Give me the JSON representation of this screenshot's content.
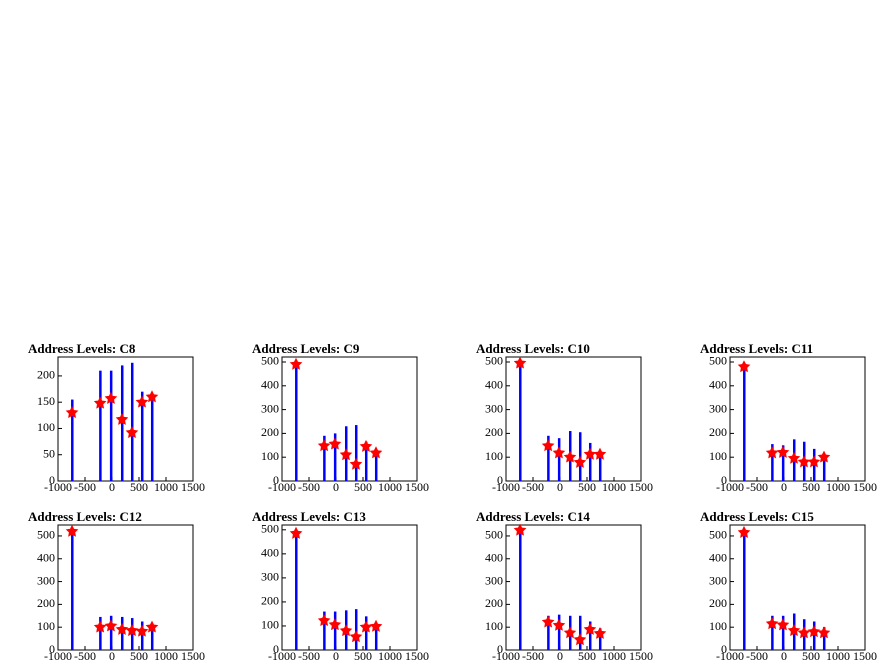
{
  "chart_data": [
    {
      "type": "histogram",
      "title": "Address Levels: C8",
      "xlim": [
        -1000,
        1500
      ],
      "xticks": [
        -1000,
        -500,
        0,
        500,
        1000,
        1500
      ],
      "ylim": [
        0,
        236
      ],
      "yticks": [
        0,
        50,
        100,
        150,
        200
      ],
      "x": [
        -740,
        -220,
        -20,
        185,
        370,
        555,
        740
      ],
      "hist_values": [
        155,
        210,
        210,
        220,
        225,
        170,
        165
      ],
      "values": [
        130,
        148,
        157,
        117,
        92,
        150,
        160
      ],
      "hist_color": "#0000ff",
      "marker_color": "#ff0000"
    },
    {
      "type": "histogram",
      "title": "Address Levels: C9",
      "xlim": [
        -1000,
        1500
      ],
      "xticks": [
        -1000,
        -500,
        0,
        500,
        1000,
        1500
      ],
      "ylim": [
        0,
        521
      ],
      "yticks": [
        0,
        100,
        200,
        300,
        400,
        500
      ],
      "x": [
        -740,
        -220,
        -20,
        185,
        370,
        555,
        740
      ],
      "hist_values": [
        500,
        190,
        200,
        230,
        235,
        165,
        130
      ],
      "values": [
        490,
        148,
        155,
        110,
        70,
        145,
        118
      ],
      "hist_color": "#0000ff",
      "marker_color": "#ff0000"
    },
    {
      "type": "histogram",
      "title": "Address Levels: C10",
      "xlim": [
        -1000,
        1500
      ],
      "xticks": [
        -1000,
        -500,
        0,
        500,
        1000,
        1500
      ],
      "ylim": [
        0,
        521
      ],
      "yticks": [
        0,
        100,
        200,
        300,
        400,
        500
      ],
      "x": [
        -740,
        -220,
        -20,
        185,
        370,
        555,
        740
      ],
      "hist_values": [
        505,
        190,
        180,
        210,
        205,
        160,
        120
      ],
      "values": [
        495,
        148,
        118,
        100,
        78,
        112,
        112
      ],
      "hist_color": "#0000ff",
      "marker_color": "#ff0000"
    },
    {
      "type": "histogram",
      "title": "Address Levels: C11",
      "xlim": [
        -1000,
        1500
      ],
      "xticks": [
        -1000,
        -500,
        0,
        500,
        1000,
        1500
      ],
      "ylim": [
        0,
        521
      ],
      "yticks": [
        0,
        100,
        200,
        300,
        400,
        500
      ],
      "x": [
        -740,
        -220,
        -20,
        185,
        370,
        555,
        740
      ],
      "hist_values": [
        490,
        155,
        150,
        175,
        165,
        135,
        110
      ],
      "values": [
        480,
        118,
        120,
        95,
        80,
        80,
        100
      ],
      "hist_color": "#0000ff",
      "marker_color": "#ff0000"
    },
    {
      "type": "histogram",
      "title": "Address Levels: C12",
      "xlim": [
        -1000,
        1500
      ],
      "xticks": [
        -1000,
        -500,
        0,
        500,
        1000,
        1500
      ],
      "ylim": [
        0,
        548
      ],
      "yticks": [
        0,
        100,
        200,
        300,
        400,
        500
      ],
      "x": [
        -740,
        -220,
        -20,
        185,
        370,
        555,
        740
      ],
      "hist_values": [
        530,
        145,
        150,
        145,
        140,
        125,
        105
      ],
      "values": [
        520,
        100,
        105,
        90,
        85,
        82,
        100
      ],
      "hist_color": "#0000ff",
      "marker_color": "#ff0000"
    },
    {
      "type": "histogram",
      "title": "Address Levels: C13",
      "xlim": [
        -1000,
        1500
      ],
      "xticks": [
        -1000,
        -500,
        0,
        500,
        1000,
        1500
      ],
      "ylim": [
        0,
        520
      ],
      "yticks": [
        0,
        100,
        200,
        300,
        400,
        500
      ],
      "x": [
        -740,
        -220,
        -20,
        185,
        370,
        555,
        740
      ],
      "hist_values": [
        495,
        160,
        160,
        165,
        170,
        140,
        110
      ],
      "values": [
        485,
        122,
        105,
        80,
        55,
        95,
        98
      ],
      "hist_color": "#0000ff",
      "marker_color": "#ff0000"
    },
    {
      "type": "histogram",
      "title": "Address Levels: C14",
      "xlim": [
        -1000,
        1500
      ],
      "xticks": [
        -1000,
        -500,
        0,
        500,
        1000,
        1500
      ],
      "ylim": [
        0,
        548
      ],
      "yticks": [
        0,
        100,
        200,
        300,
        400,
        500
      ],
      "x": [
        -740,
        -220,
        -20,
        185,
        370,
        555,
        740
      ],
      "hist_values": [
        535,
        150,
        155,
        150,
        150,
        125,
        95
      ],
      "values": [
        525,
        122,
        108,
        75,
        45,
        90,
        72
      ],
      "hist_color": "#0000ff",
      "marker_color": "#ff0000"
    },
    {
      "type": "histogram",
      "title": "Address Levels: C15",
      "xlim": [
        -1000,
        1500
      ],
      "xticks": [
        -1000,
        -500,
        0,
        500,
        1000,
        1500
      ],
      "ylim": [
        0,
        548
      ],
      "yticks": [
        0,
        100,
        200,
        300,
        400,
        500
      ],
      "x": [
        -740,
        -220,
        -20,
        185,
        370,
        555,
        740
      ],
      "hist_values": [
        525,
        150,
        150,
        160,
        135,
        125,
        100
      ],
      "values": [
        515,
        115,
        110,
        85,
        75,
        80,
        75
      ],
      "hist_color": "#0000ff",
      "marker_color": "#ff0000"
    }
  ]
}
